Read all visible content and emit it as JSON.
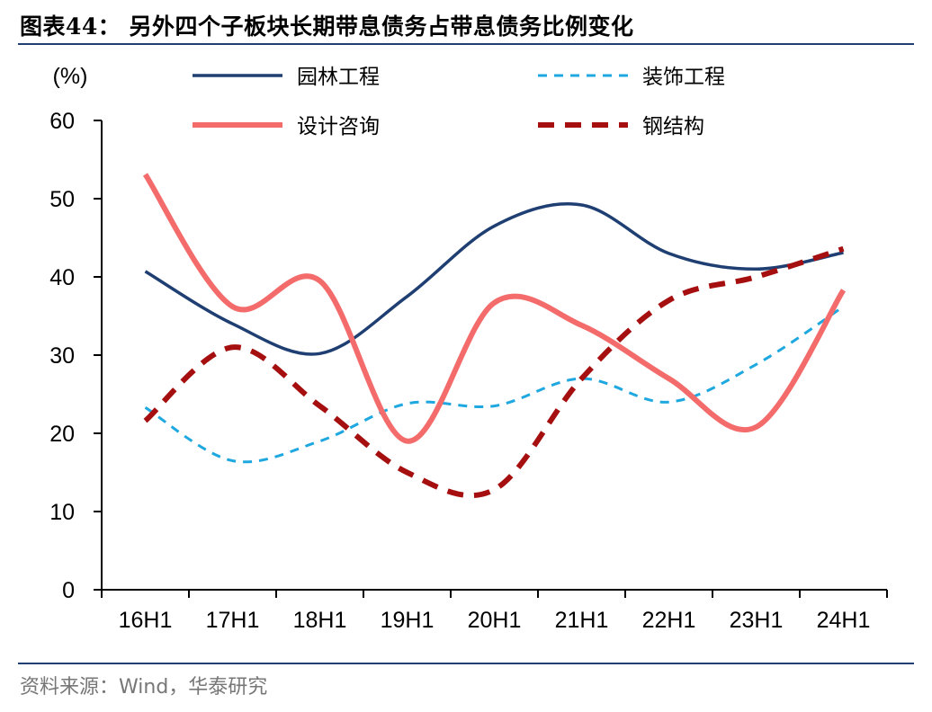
{
  "title": "图表44：  另外四个子板块长期带息债务占带息债务比例变化",
  "source": "资料来源：Wind，华泰研究",
  "colors": {
    "rule": "#1f3f73",
    "garden": "#1f3f73",
    "decoration": "#1fa8e0",
    "design": "#f46b6b",
    "steel": "#a50f0f"
  },
  "chart_data": {
    "type": "line",
    "ylabel": "(%)",
    "ylim": [
      0,
      60
    ],
    "yticks": [
      0,
      10,
      20,
      30,
      40,
      50,
      60
    ],
    "categories": [
      "16H1",
      "17H1",
      "18H1",
      "19H1",
      "20H1",
      "21H1",
      "22H1",
      "23H1",
      "24H1"
    ],
    "grid": false,
    "legend_position": "top",
    "series": [
      {
        "name": "园林工程",
        "values": [
          40.7,
          34.0,
          30.2,
          37.5,
          46.5,
          49.2,
          43.0,
          41.0,
          43.1
        ],
        "color": "#1f3f73",
        "style": "solid"
      },
      {
        "name": "装饰工程",
        "values": [
          23.3,
          16.5,
          19.0,
          23.8,
          23.5,
          27.0,
          24.0,
          28.8,
          36.2
        ],
        "color": "#1fa8e0",
        "style": "dashed"
      },
      {
        "name": "设计咨询",
        "values": [
          53.1,
          36.2,
          39.5,
          19.0,
          36.7,
          33.8,
          27.0,
          20.8,
          38.3
        ],
        "color": "#f46b6b",
        "style": "solid"
      },
      {
        "name": "钢结构",
        "values": [
          21.6,
          31.0,
          23.5,
          15.0,
          12.8,
          27.0,
          37.0,
          40.0,
          43.6
        ],
        "color": "#a50f0f",
        "style": "dashed"
      }
    ]
  }
}
